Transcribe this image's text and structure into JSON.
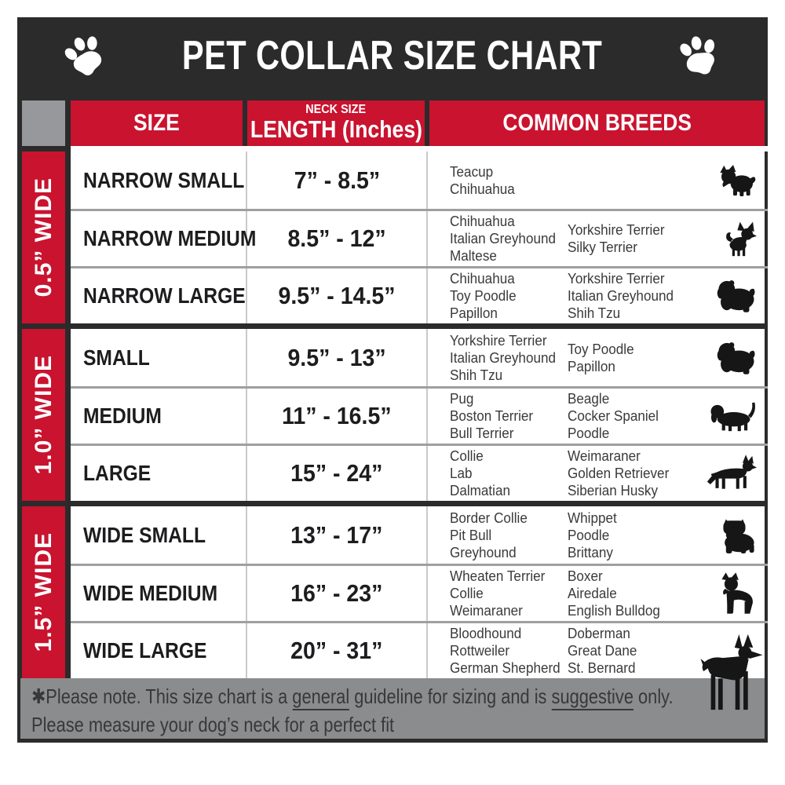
{
  "title": "PET COLLAR SIZE CHART",
  "title_bar": {
    "left_icon": "paw-print-icon",
    "right_icon": "paw-print-icon"
  },
  "table": {
    "headers": {
      "size": "SIZE",
      "neck_size_top": "NECK SIZE",
      "neck_size_main": "LENGTH (Inches)",
      "breeds": "COMMON BREEDS"
    },
    "groups": [
      {
        "width_label": "0.5” WIDE",
        "rows": [
          {
            "size": "NARROW SMALL",
            "neck_length": "7” - 8.5”",
            "breeds_col1": [
              "Teacup",
              "Chihuahua"
            ],
            "breeds_col2": [],
            "icon": "yorkshire-terrier-icon"
          },
          {
            "size": "NARROW MEDIUM",
            "neck_length": "8.5” - 12”",
            "breeds_col1": [
              "Chihuahua",
              "Italian Greyhound",
              "Maltese"
            ],
            "breeds_col2": [
              "Yorkshire Terrier",
              "Silky Terrier"
            ],
            "icon": "chihuahua-icon"
          },
          {
            "size": "NARROW LARGE",
            "neck_length": "9.5” - 14.5”",
            "breeds_col1": [
              "Chihuahua",
              "Toy Poodle",
              "Papillon"
            ],
            "breeds_col2": [
              "Yorkshire Terrier",
              "Italian Greyhound",
              "Shih Tzu"
            ],
            "icon": "shih-tzu-icon"
          }
        ]
      },
      {
        "width_label": "1.0” WIDE",
        "rows": [
          {
            "size": "SMALL",
            "neck_length": "9.5” - 13”",
            "breeds_col1": [
              "Yorkshire Terrier",
              "Italian Greyhound",
              "Shih Tzu"
            ],
            "breeds_col2": [
              "Toy Poodle",
              "Papillon"
            ],
            "icon": "shih-tzu-icon"
          },
          {
            "size": "MEDIUM",
            "neck_length": "11” - 16.5”",
            "breeds_col1": [
              "Pug",
              "Boston Terrier",
              "Bull Terrier"
            ],
            "breeds_col2": [
              "Beagle",
              "Cocker Spaniel",
              "Poodle"
            ],
            "icon": "dachshund-icon"
          },
          {
            "size": "LARGE",
            "neck_length": "15” - 24”",
            "breeds_col1": [
              "Collie",
              "Lab",
              "Dalmatian"
            ],
            "breeds_col2": [
              "Weimaraner",
              "Golden Retriever",
              "Siberian Husky"
            ],
            "icon": "german-shepherd-icon"
          }
        ]
      },
      {
        "width_label": "1.5” WIDE",
        "rows": [
          {
            "size": "WIDE SMALL",
            "neck_length": "13” - 17”",
            "breeds_col1": [
              "Border Collie",
              "Pit Bull",
              "Greyhound"
            ],
            "breeds_col2": [
              "Whippet",
              "Poodle",
              "Brittany"
            ],
            "icon": "bulldog-icon"
          },
          {
            "size": "WIDE MEDIUM",
            "neck_length": "16” - 23”",
            "breeds_col1": [
              "Wheaten Terrier",
              "Collie",
              "Weimaraner"
            ],
            "breeds_col2": [
              "Boxer",
              "Airedale",
              "English Bulldog"
            ],
            "icon": "pit-bull-icon"
          },
          {
            "size": "WIDE LARGE",
            "neck_length": "20” - 31”",
            "breeds_col1": [
              "Bloodhound",
              "Rottweiler",
              "German Shepherd"
            ],
            "breeds_col2": [
              "Doberman",
              "Great Dane",
              "St. Bernard"
            ],
            "icon": "doberman-icon"
          }
        ]
      }
    ]
  },
  "footer": {
    "line1_parts": [
      {
        "text": "✱Please note. This size chart is a ",
        "underline": false
      },
      {
        "text": "general",
        "underline": true
      },
      {
        "text": " guideline for sizing and is ",
        "underline": false
      },
      {
        "text": "suggestive",
        "underline": true
      },
      {
        "text": " only.",
        "underline": false
      }
    ],
    "line2": "Please measure your dog’s neck for a perfect fit"
  },
  "colors": {
    "red": "#c9132f",
    "bar_black": "#2b2b2b",
    "corner_gray": "#97989b",
    "footer_gray": "#8a8c8e",
    "row_divider_gray": "#9e9fa1",
    "text_dark": "#1d1d1f",
    "breed_text": "#3a3a3c"
  }
}
